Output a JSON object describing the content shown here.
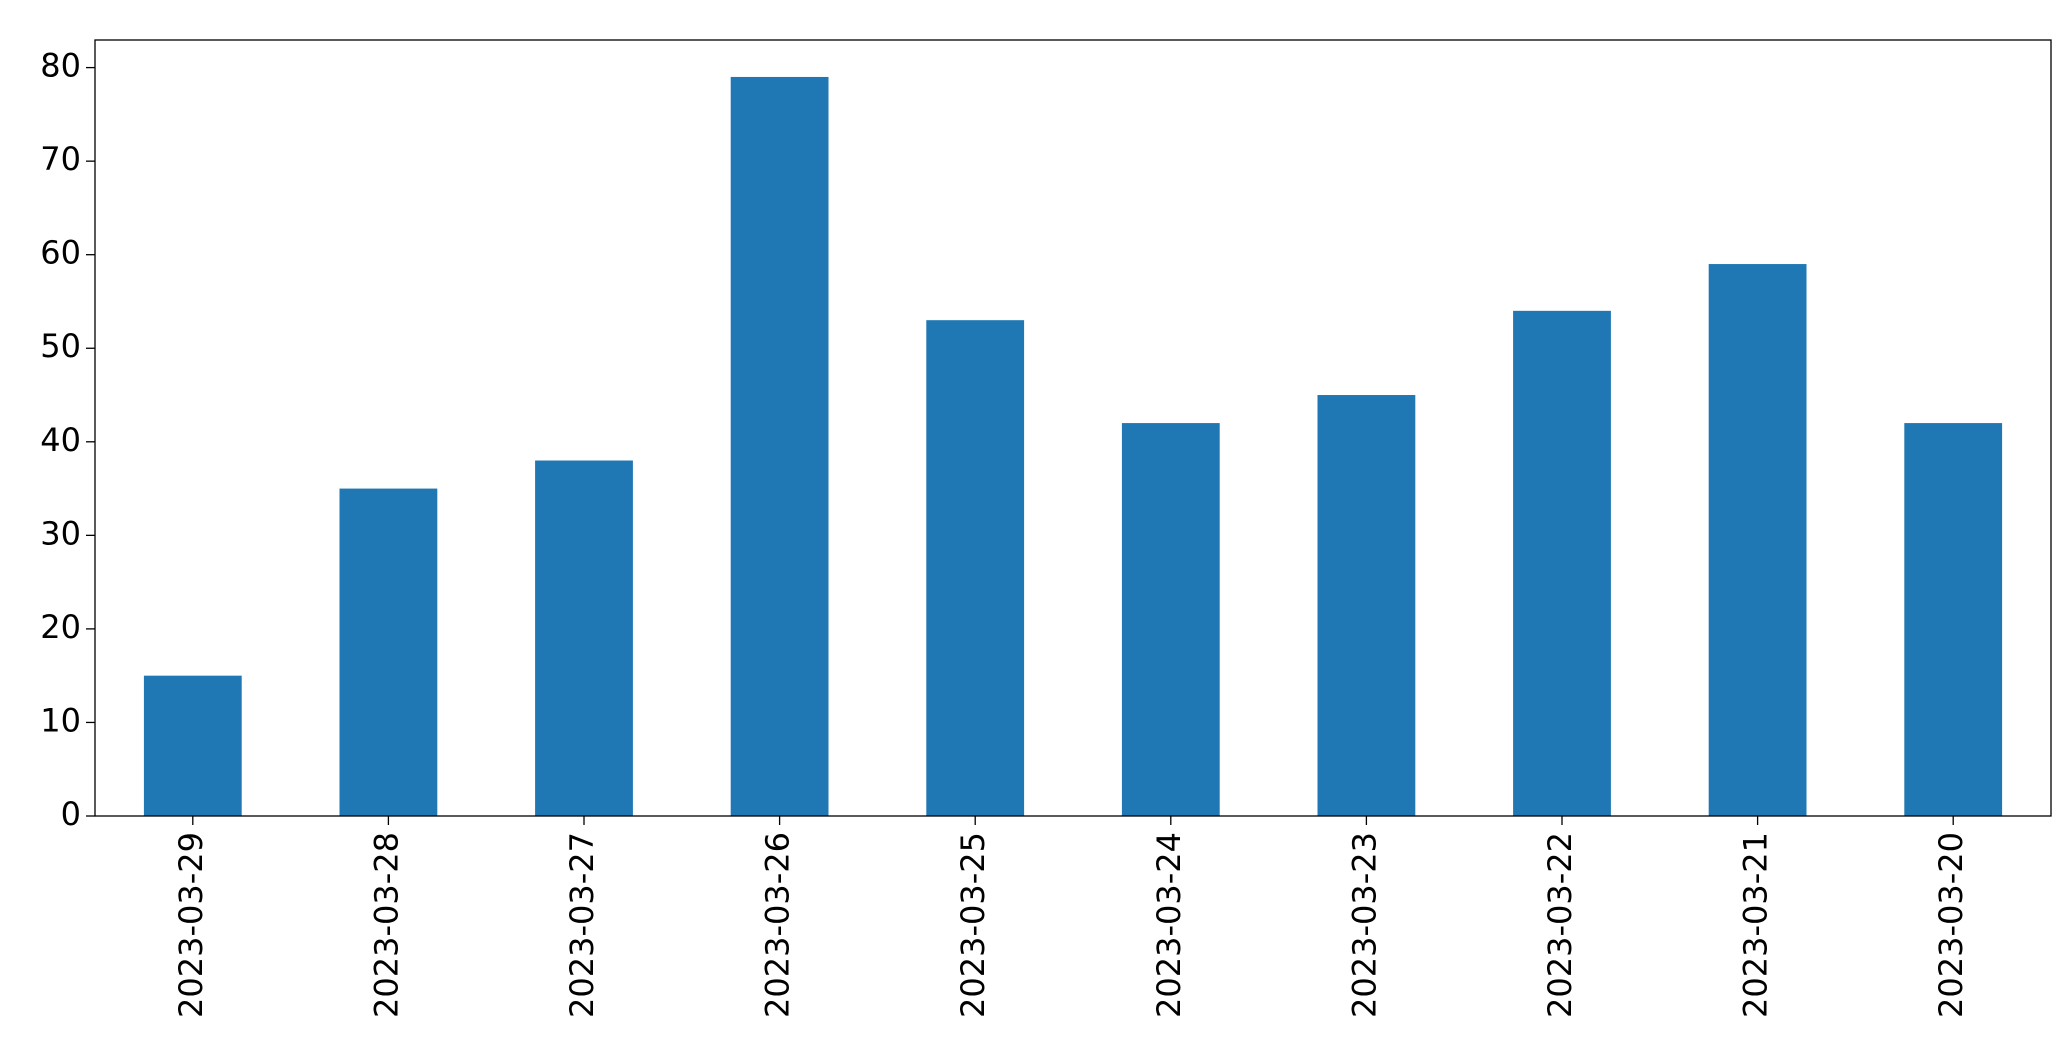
{
  "chart_data": {
    "type": "bar",
    "categories": [
      "2023-03-29",
      "2023-03-28",
      "2023-03-27",
      "2023-03-26",
      "2023-03-25",
      "2023-03-24",
      "2023-03-23",
      "2023-03-22",
      "2023-03-21",
      "2023-03-20"
    ],
    "values": [
      15,
      35,
      38,
      79,
      53,
      42,
      45,
      54,
      59,
      42
    ],
    "color": "#1f77b4",
    "ylim": [
      0,
      82.95
    ],
    "yticks": [
      0,
      10,
      20,
      30,
      40,
      50,
      60,
      70,
      80
    ],
    "grid": false
  }
}
